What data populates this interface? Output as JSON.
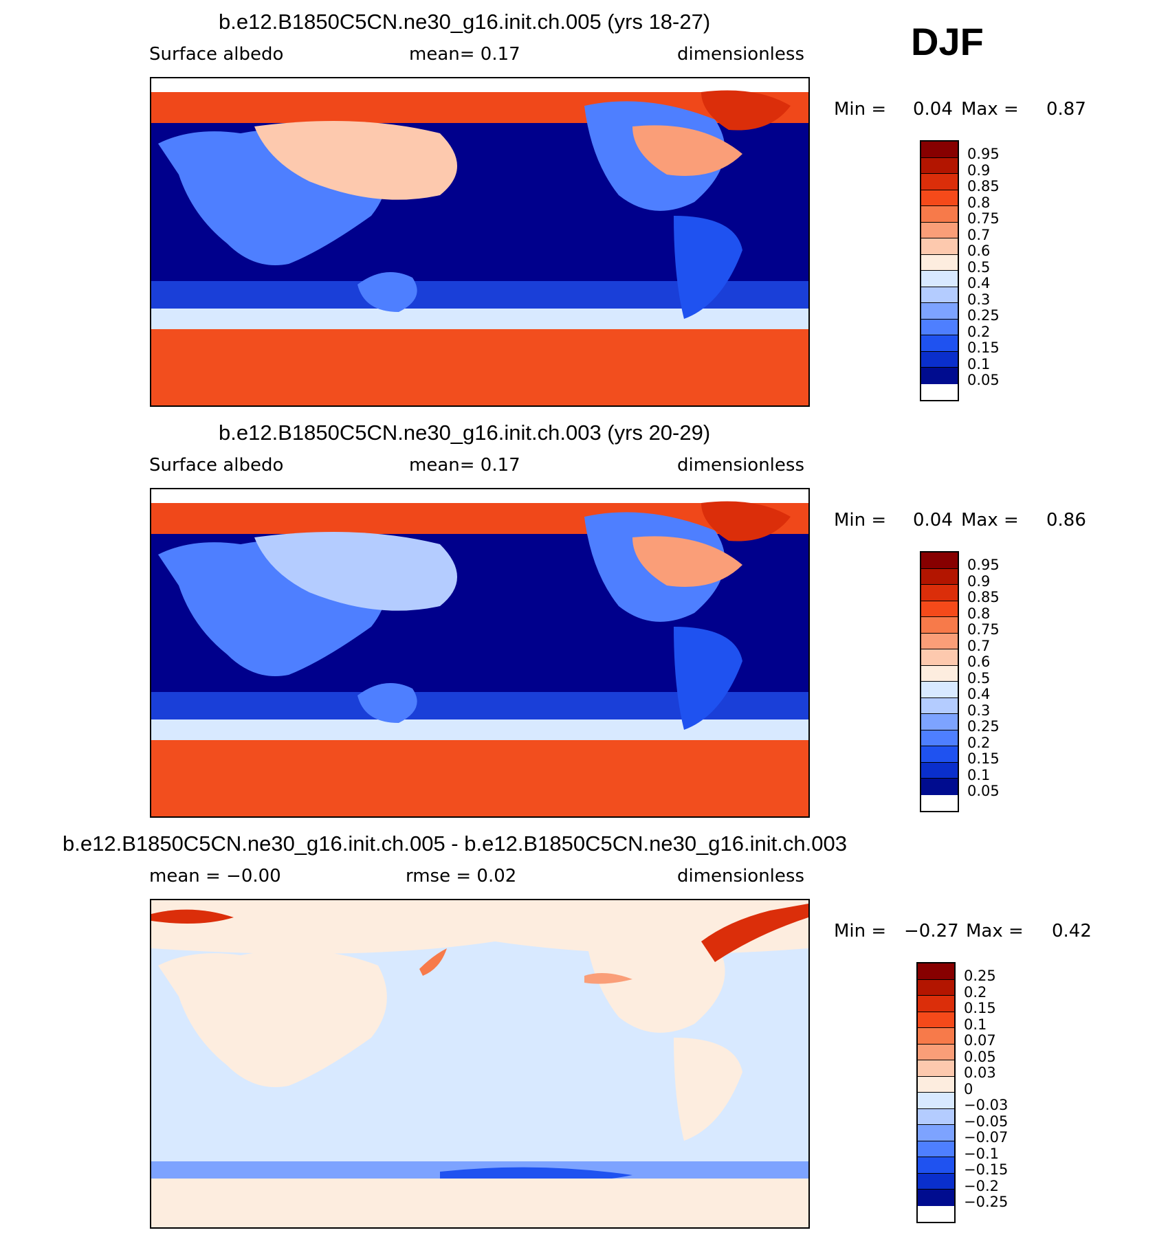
{
  "season": "DJF",
  "panels": [
    {
      "id": "case1",
      "title": "b.e12.B1850C5CN.ne30_g16.init.ch.005 (yrs 18-27)",
      "left_label": "Surface  albedo",
      "center_label": "mean=     0.17",
      "right_label": "dimensionless",
      "min_label": "Min  =",
      "min_value": "0.04",
      "max_label": "Max  =",
      "max_value": "0.87",
      "ocean_color": "#00008C",
      "colorbar_levels": [
        "0.95",
        "0.9",
        "0.85",
        "0.8",
        "0.75",
        "0.7",
        "0.6",
        "0.5",
        "0.4",
        "0.3",
        "0.25",
        "0.2",
        "0.15",
        "0.1",
        "0.05"
      ]
    },
    {
      "id": "case2",
      "title": "b.e12.B1850C5CN.ne30_g16.init.ch.003 (yrs 20-29)",
      "left_label": "Surface  albedo",
      "center_label": "mean=     0.17",
      "right_label": "dimensionless",
      "min_label": "Min  =",
      "min_value": "0.04",
      "max_label": "Max  =",
      "max_value": "0.86",
      "ocean_color": "#00008C",
      "colorbar_levels": [
        "0.95",
        "0.9",
        "0.85",
        "0.8",
        "0.75",
        "0.7",
        "0.6",
        "0.5",
        "0.4",
        "0.3",
        "0.25",
        "0.2",
        "0.15",
        "0.1",
        "0.05"
      ]
    },
    {
      "id": "diff",
      "title": "b.e12.B1850C5CN.ne30_g16.init.ch.005 - b.e12.B1850C5CN.ne30_g16.init.ch.003",
      "left_label": "mean  =    −0.00",
      "center_label": "rmse  =     0.02",
      "right_label": "dimensionless",
      "min_label": "Min  =",
      "min_value": "−0.27",
      "max_label": "Max  =",
      "max_value": "0.42",
      "ocean_color": "#D6E8FF",
      "colorbar_levels": [
        "0.25",
        "0.2",
        "0.15",
        "0.1",
        "0.07",
        "0.05",
        "0.03",
        "0",
        "−0.03",
        "−0.05",
        "−0.07",
        "−0.1",
        "−0.15",
        "−0.2",
        "−0.25"
      ]
    }
  ],
  "colorbar_colors": [
    "#870000",
    "#B31500",
    "#DB2E0A",
    "#F54A1A",
    "#F77A4A",
    "#FA9E78",
    "#FDC9AE",
    "#FDEDDF",
    "#D8E9FF",
    "#B4CCFF",
    "#7DA3FF",
    "#4E7FFF",
    "#1F52F0",
    "#0A2FCC",
    "#000C8F"
  ]
}
